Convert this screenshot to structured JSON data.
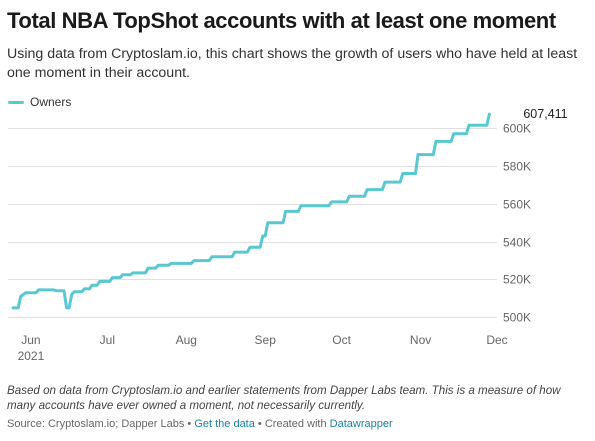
{
  "header": {
    "title": "Total NBA TopShot accounts with at least one moment",
    "subtitle": "Using data from Cryptoslam.io, this chart shows the growth of users who have held at least one moment in their account."
  },
  "footer": {
    "notes": "Based on data from Cryptoslam.io and earlier statements from Dapper Labs team. This is a measure of how many accounts have ever owned a moment, not necessarily currently.",
    "source_label": "Source:",
    "source_text": "Cryptoslam.io; Dapper Labs",
    "separator": "•",
    "get_data_link": "Get the data",
    "created_with_label": "Created with",
    "datawrapper_link": "Datawrapper"
  },
  "colors": {
    "series": "#5ac8d0",
    "grid": "#e0e0e0",
    "tick_label": "#666666",
    "link": "#1d81a2"
  },
  "chart_data": {
    "type": "line",
    "title": "Total NBA TopShot accounts with at least one moment",
    "grid": "horizontal",
    "legend_position": "top-left",
    "x_axis": {
      "type": "date",
      "range": [
        "2021-05-23",
        "2021-12-01"
      ],
      "ticks": [
        {
          "date": "2021-06-01",
          "label": "Jun",
          "sublabel": "2021"
        },
        {
          "date": "2021-07-01",
          "label": "Jul",
          "sublabel": ""
        },
        {
          "date": "2021-08-01",
          "label": "Aug",
          "sublabel": ""
        },
        {
          "date": "2021-09-01",
          "label": "Sep",
          "sublabel": ""
        },
        {
          "date": "2021-10-01",
          "label": "Oct",
          "sublabel": ""
        },
        {
          "date": "2021-11-01",
          "label": "Nov",
          "sublabel": ""
        },
        {
          "date": "2021-12-01",
          "label": "Dec",
          "sublabel": ""
        }
      ]
    },
    "y_axis": {
      "range": [
        497000,
        608000
      ],
      "ticks": [
        {
          "value": 500000,
          "label": "500K"
        },
        {
          "value": 520000,
          "label": "520K"
        },
        {
          "value": 540000,
          "label": "540K"
        },
        {
          "value": 560000,
          "label": "560K"
        },
        {
          "value": 580000,
          "label": "580K"
        },
        {
          "value": 600000,
          "label": "600K"
        }
      ]
    },
    "series": [
      {
        "name": "Owners",
        "color": "#5ac8d0",
        "end_label": "607,411",
        "points": [
          [
            "2021-05-25",
            505000
          ],
          [
            "2021-05-27",
            505000
          ],
          [
            "2021-05-28",
            511000
          ],
          [
            "2021-05-30",
            513000
          ],
          [
            "2021-06-03",
            513000
          ],
          [
            "2021-06-04",
            514500
          ],
          [
            "2021-06-10",
            514500
          ],
          [
            "2021-06-11",
            514000
          ],
          [
            "2021-06-14",
            514000
          ],
          [
            "2021-06-15",
            505000
          ],
          [
            "2021-06-16",
            505000
          ],
          [
            "2021-06-17",
            512000
          ],
          [
            "2021-06-18",
            513500
          ],
          [
            "2021-06-21",
            513500
          ],
          [
            "2021-06-22",
            515000
          ],
          [
            "2021-06-24",
            515000
          ],
          [
            "2021-06-25",
            517000
          ],
          [
            "2021-06-27",
            517000
          ],
          [
            "2021-06-28",
            519000
          ],
          [
            "2021-07-02",
            519000
          ],
          [
            "2021-07-03",
            521000
          ],
          [
            "2021-07-06",
            521000
          ],
          [
            "2021-07-07",
            522500
          ],
          [
            "2021-07-10",
            522500
          ],
          [
            "2021-07-11",
            523500
          ],
          [
            "2021-07-16",
            523500
          ],
          [
            "2021-07-17",
            526000
          ],
          [
            "2021-07-20",
            526000
          ],
          [
            "2021-07-21",
            527500
          ],
          [
            "2021-07-25",
            527500
          ],
          [
            "2021-07-26",
            528500
          ],
          [
            "2021-08-03",
            528500
          ],
          [
            "2021-08-04",
            530000
          ],
          [
            "2021-08-10",
            530000
          ],
          [
            "2021-08-11",
            532000
          ],
          [
            "2021-08-19",
            532000
          ],
          [
            "2021-08-20",
            534500
          ],
          [
            "2021-08-25",
            534500
          ],
          [
            "2021-08-26",
            537000
          ],
          [
            "2021-08-30",
            537000
          ],
          [
            "2021-08-31",
            543000
          ],
          [
            "2021-09-01",
            543000
          ],
          [
            "2021-09-02",
            550000
          ],
          [
            "2021-09-08",
            550000
          ],
          [
            "2021-09-09",
            556000
          ],
          [
            "2021-09-14",
            556000
          ],
          [
            "2021-09-15",
            559000
          ],
          [
            "2021-09-26",
            559000
          ],
          [
            "2021-09-27",
            561000
          ],
          [
            "2021-10-03",
            561000
          ],
          [
            "2021-10-04",
            564000
          ],
          [
            "2021-10-10",
            564000
          ],
          [
            "2021-10-11",
            567500
          ],
          [
            "2021-10-17",
            567500
          ],
          [
            "2021-10-18",
            571500
          ],
          [
            "2021-10-24",
            571500
          ],
          [
            "2021-10-25",
            576000
          ],
          [
            "2021-10-30",
            576000
          ],
          [
            "2021-10-31",
            586000
          ],
          [
            "2021-11-06",
            586000
          ],
          [
            "2021-11-07",
            593000
          ],
          [
            "2021-11-13",
            593000
          ],
          [
            "2021-11-14",
            597000
          ],
          [
            "2021-11-19",
            597000
          ],
          [
            "2021-11-20",
            601500
          ],
          [
            "2021-11-27",
            601500
          ],
          [
            "2021-11-28",
            607411
          ]
        ]
      }
    ]
  }
}
